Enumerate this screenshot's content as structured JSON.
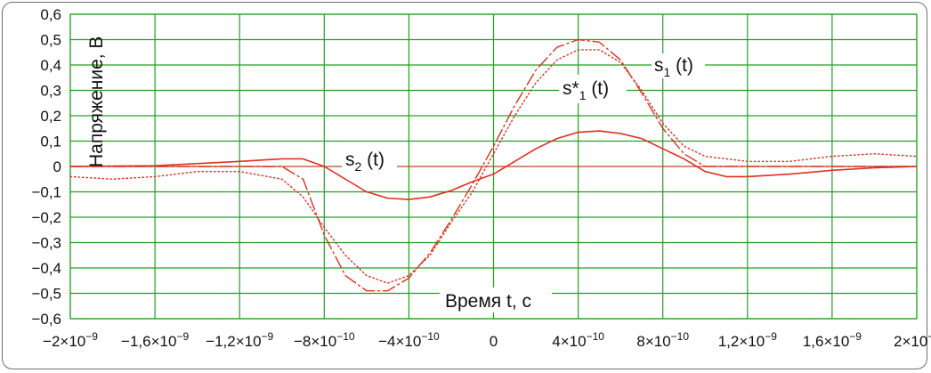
{
  "chart_data": {
    "type": "line",
    "title": "",
    "xlabel": "Время t, с",
    "ylabel": "Напряжение, В",
    "xlim": [
      -2e-09,
      2e-09
    ],
    "ylim": [
      -0.6,
      0.6
    ],
    "grid": true,
    "x_tick_values": [
      -2e-09,
      -1.6e-09,
      -1.2e-09,
      -8e-10,
      -4e-10,
      0,
      4e-10,
      8e-10,
      1.2e-09,
      1.6e-09,
      2e-09
    ],
    "x_tick_labels": [
      "−2×10",
      "−1,6×10",
      "−1,2×10",
      "−8×10",
      "−4×10",
      "0",
      "4×10",
      "8×10",
      "1,2×10",
      "1,6×10",
      "2×10"
    ],
    "x_tick_exponents": [
      "−9",
      "−9",
      "−9",
      "−10",
      "−10",
      "",
      "−10",
      "−10",
      "−9",
      "−9",
      "−9"
    ],
    "y_tick_values": [
      -0.6,
      -0.5,
      -0.4,
      -0.3,
      -0.2,
      -0.1,
      0,
      0.1,
      0.2,
      0.3,
      0.4,
      0.5,
      0.6
    ],
    "y_tick_labels": [
      "−0,6",
      "−0,5",
      "−0,4",
      "−0,3",
      "−0,2",
      "−0,1",
      "0",
      "0,1",
      "0,2",
      "0,3",
      "0,4",
      "0,5",
      "0,6"
    ],
    "series_labels": {
      "s1": {
        "base": "s",
        "sub": "1",
        "suffix": " (t)"
      },
      "s1_star": {
        "base": "s*",
        "sub": "1",
        "suffix": " (t)"
      },
      "s2": {
        "base": "s",
        "sub": "2",
        "suffix": " (t)"
      }
    },
    "series": [
      {
        "id": "s1",
        "style": "dash-dot",
        "color": "#e03020",
        "x": [
          -2e-09,
          -1.6e-09,
          -1.2e-09,
          -1e-09,
          -9e-10,
          -8e-10,
          -7e-10,
          -6e-10,
          -5e-10,
          -4e-10,
          -3e-10,
          -2e-10,
          -1e-10,
          0,
          1e-10,
          2e-10,
          3e-10,
          4e-10,
          5e-10,
          6e-10,
          7e-10,
          8e-10,
          9e-10,
          1e-09,
          1.2e-09,
          1.6e-09,
          2e-09
        ],
        "y": [
          0,
          0,
          0,
          0,
          -0.05,
          -0.27,
          -0.43,
          -0.49,
          -0.49,
          -0.44,
          -0.34,
          -0.21,
          -0.07,
          0.08,
          0.24,
          0.38,
          0.47,
          0.5,
          0.49,
          0.42,
          0.29,
          0.15,
          0.05,
          0.0,
          0,
          0,
          0
        ]
      },
      {
        "id": "s1_star",
        "style": "dotted",
        "color": "#e03020",
        "x": [
          -2e-09,
          -1.8e-09,
          -1.6e-09,
          -1.4e-09,
          -1.2e-09,
          -1e-09,
          -9e-10,
          -8e-10,
          -7e-10,
          -6e-10,
          -5e-10,
          -4e-10,
          -3e-10,
          -2e-10,
          -1e-10,
          0,
          1e-10,
          2e-10,
          3e-10,
          4e-10,
          5e-10,
          6e-10,
          7e-10,
          8e-10,
          9e-10,
          1e-09,
          1.2e-09,
          1.4e-09,
          1.6e-09,
          1.8e-09,
          2e-09
        ],
        "y": [
          -0.04,
          -0.05,
          -0.04,
          -0.02,
          -0.02,
          -0.05,
          -0.12,
          -0.24,
          -0.35,
          -0.43,
          -0.46,
          -0.43,
          -0.35,
          -0.22,
          -0.1,
          0.05,
          0.2,
          0.33,
          0.42,
          0.46,
          0.46,
          0.41,
          0.3,
          0.17,
          0.08,
          0.04,
          0.02,
          0.02,
          0.04,
          0.05,
          0.04
        ]
      },
      {
        "id": "s2",
        "style": "solid",
        "color": "#e03020",
        "x": [
          -2e-09,
          -1.6e-09,
          -1.2e-09,
          -1e-09,
          -9e-10,
          -8e-10,
          -7e-10,
          -6e-10,
          -5e-10,
          -4e-10,
          -3e-10,
          -2e-10,
          -1e-10,
          0,
          1e-10,
          2e-10,
          3e-10,
          4e-10,
          5e-10,
          6e-10,
          7e-10,
          8e-10,
          9e-10,
          1e-09,
          1.1e-09,
          1.2e-09,
          1.4e-09,
          1.6e-09,
          1.8e-09,
          2e-09
        ],
        "y": [
          0,
          0.003,
          0.02,
          0.03,
          0.03,
          0.0,
          -0.05,
          -0.1,
          -0.125,
          -0.13,
          -0.12,
          -0.095,
          -0.06,
          -0.03,
          0.02,
          0.07,
          0.11,
          0.135,
          0.14,
          0.13,
          0.11,
          0.07,
          0.03,
          -0.02,
          -0.04,
          -0.04,
          -0.03,
          -0.015,
          -0.005,
          0
        ]
      }
    ]
  }
}
